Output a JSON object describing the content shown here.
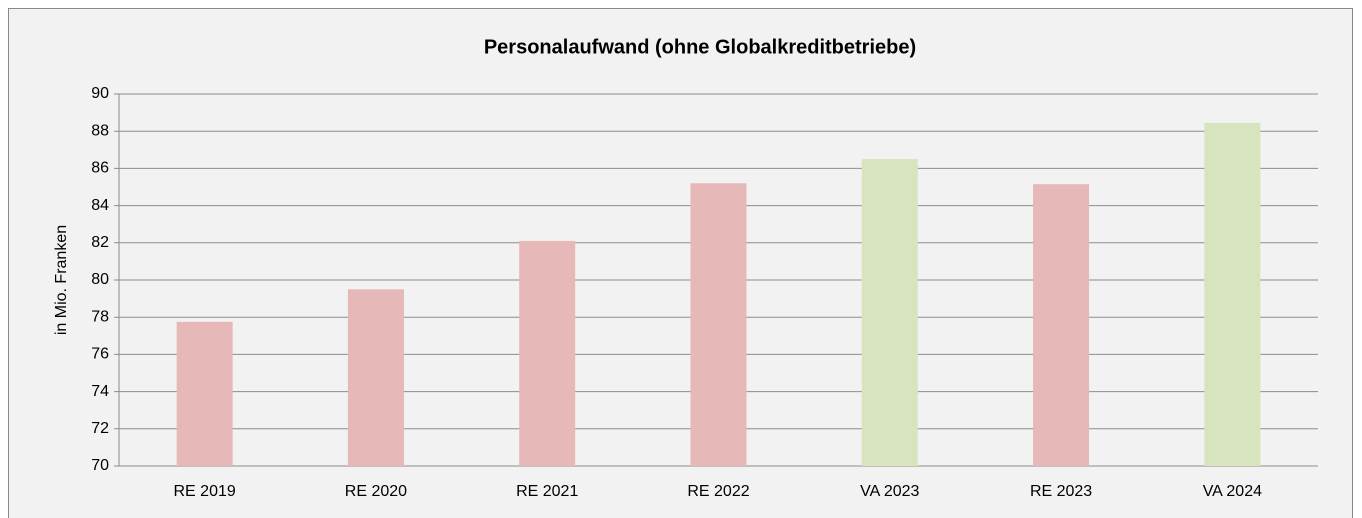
{
  "chart_data": {
    "type": "bar",
    "title": "Personalaufwand (ohne Globalkreditbetriebe)",
    "ylabel": "in Mio. Franken",
    "categories": [
      "RE 2019",
      "RE 2020",
      "RE 2021",
      "RE 2022",
      "VA 2023",
      "RE 2023",
      "VA 2024"
    ],
    "values": [
      77.75,
      79.5,
      82.1,
      85.2,
      86.5,
      85.15,
      88.45
    ],
    "colors": [
      "#e6b8b7",
      "#e6b8b7",
      "#e6b8b7",
      "#e6b8b7",
      "#d7e4bd",
      "#e6b8b7",
      "#d7e4bd"
    ],
    "ylim": [
      70,
      90
    ],
    "yticks": [
      70,
      72,
      74,
      76,
      78,
      80,
      82,
      84,
      86,
      88,
      90
    ],
    "grid": true
  }
}
